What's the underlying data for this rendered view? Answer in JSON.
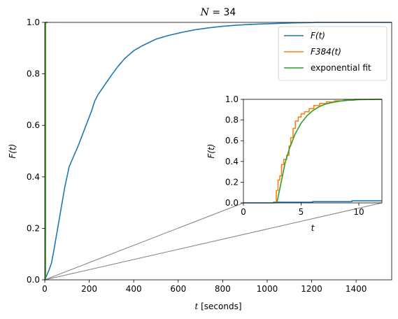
{
  "chart_data": [
    {
      "type": "line",
      "title": "N = 34",
      "title_parts": {
        "var": "N",
        "rest": " = 34"
      },
      "xlabel": {
        "var": "t",
        "rest": " [seconds]"
      },
      "ylabel": {
        "text": "F(t)"
      },
      "xlim": [
        0,
        1560
      ],
      "ylim": [
        0,
        1
      ],
      "xticks": [
        "0",
        "200",
        "400",
        "600",
        "800",
        "1000",
        "1200",
        "1400"
      ],
      "yticks": [
        "0.0",
        "0.2",
        "0.4",
        "0.6",
        "0.8",
        "1.0"
      ],
      "legend_position": "top-right",
      "legend": [
        {
          "label": "F(t)",
          "color": "#1f77b4"
        },
        {
          "label": "F384(t)",
          "color": "#ff7f0e"
        },
        {
          "label": "exponential fit",
          "color": "#2ca02c"
        }
      ],
      "series": [
        {
          "name": "F(t)",
          "color": "#1f77b4",
          "x": [
            0,
            10,
            20,
            30,
            40,
            50,
            60,
            70,
            80,
            90,
            100,
            110,
            130,
            150,
            170,
            190,
            210,
            225,
            240,
            260,
            280,
            300,
            330,
            360,
            400,
            440,
            500,
            560,
            620,
            680,
            740,
            800,
            860,
            920,
            980,
            1050,
            1120,
            1200,
            1220,
            1560
          ],
          "y": [
            0,
            0.02,
            0.04,
            0.065,
            0.11,
            0.16,
            0.21,
            0.26,
            0.31,
            0.36,
            0.4,
            0.44,
            0.48,
            0.52,
            0.565,
            0.61,
            0.655,
            0.695,
            0.72,
            0.745,
            0.77,
            0.795,
            0.83,
            0.86,
            0.89,
            0.91,
            0.935,
            0.95,
            0.962,
            0.972,
            0.979,
            0.985,
            0.989,
            0.992,
            0.994,
            0.996,
            0.998,
            0.999,
            1.0,
            1.0
          ]
        },
        {
          "name": "F384(t)",
          "color": "#ff7f0e",
          "x": [
            0,
            3.0,
            3.0,
            4.0,
            4.0,
            12
          ],
          "y": [
            0,
            0,
            0.4,
            0.4,
            1.0,
            1.0
          ]
        },
        {
          "name": "exponential fit",
          "color": "#2ca02c",
          "x": [
            0,
            3.2,
            3.2,
            12
          ],
          "y": [
            0,
            0,
            1.0,
            1.0
          ]
        }
      ]
    },
    {
      "type": "line",
      "title": "",
      "xlabel": {
        "var": "t",
        "rest": ""
      },
      "ylabel": {
        "text": "F(t)"
      },
      "xlim": [
        0,
        12
      ],
      "ylim": [
        0,
        1
      ],
      "xticks": [
        "0",
        "5",
        "10"
      ],
      "yticks": [
        "0.0",
        "0.2",
        "0.4",
        "0.6",
        "0.8",
        "1.0"
      ],
      "series": [
        {
          "name": "F(t)",
          "color": "#1f77b4",
          "x": [
            0,
            2.6,
            2.6,
            6,
            6,
            9.4,
            9.4,
            12
          ],
          "y": [
            0,
            0,
            0.006,
            0.006,
            0.012,
            0.012,
            0.02,
            0.02
          ]
        },
        {
          "name": "F384(t)",
          "color": "#ff7f0e",
          "x": [
            2.6,
            2.85,
            2.85,
            3.0,
            3.0,
            3.15,
            3.15,
            3.3,
            3.3,
            3.5,
            3.5,
            3.75,
            3.75,
            3.95,
            3.95,
            4.1,
            4.1,
            4.3,
            4.3,
            4.5,
            4.5,
            4.75,
            4.75,
            5.0,
            5.0,
            5.3,
            5.3,
            5.7,
            5.7,
            6.1,
            6.1,
            6.6,
            6.6,
            7.2,
            7.2,
            7.9,
            7.9,
            8.7,
            8.7,
            9.6,
            9.6,
            12
          ],
          "y": [
            0,
            0,
            0.12,
            0.12,
            0.22,
            0.22,
            0.26,
            0.26,
            0.37,
            0.37,
            0.42,
            0.42,
            0.46,
            0.46,
            0.55,
            0.55,
            0.63,
            0.63,
            0.72,
            0.72,
            0.79,
            0.79,
            0.83,
            0.83,
            0.86,
            0.86,
            0.88,
            0.88,
            0.91,
            0.91,
            0.94,
            0.94,
            0.96,
            0.96,
            0.975,
            0.975,
            0.985,
            0.985,
            0.993,
            0.993,
            1.0,
            1.0
          ]
        },
        {
          "name": "exponential fit",
          "color": "#2ca02c",
          "x": [
            2.9,
            3.2,
            3.6,
            4.0,
            4.5,
            5.0,
            5.5,
            6.0,
            6.5,
            7.0,
            7.5,
            8.0,
            8.5,
            9.0,
            9.5,
            10.0,
            12
          ],
          "y": [
            0,
            0.16,
            0.38,
            0.53,
            0.67,
            0.77,
            0.84,
            0.89,
            0.925,
            0.95,
            0.965,
            0.976,
            0.984,
            0.99,
            0.994,
            0.997,
            1.0
          ]
        }
      ]
    }
  ]
}
